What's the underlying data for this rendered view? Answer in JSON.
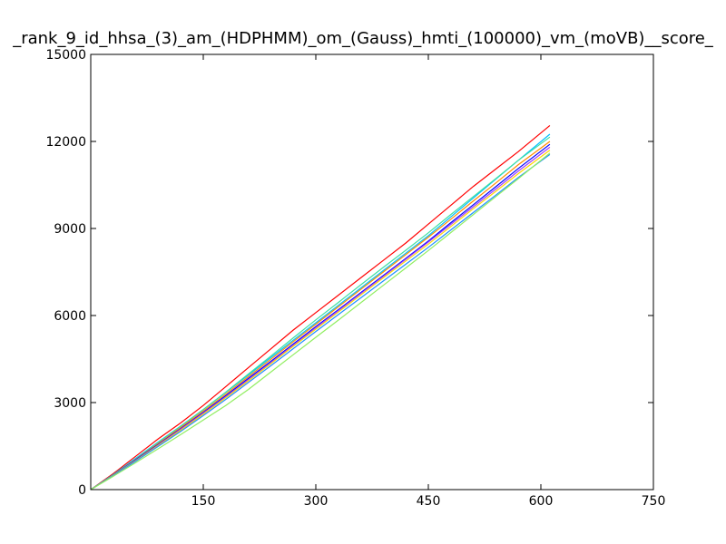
{
  "chart_data": {
    "type": "line",
    "title": "_rank_9_id_hhsa_(3)_am_(HDPHMM)_om_(Gauss)_hmti_(100000)_vm_(moVB)__score_",
    "xlabel": "",
    "ylabel": "",
    "xlim": [
      0,
      750
    ],
    "ylim": [
      0,
      15000
    ],
    "x_ticks": [
      "150",
      "300",
      "450",
      "600",
      "750"
    ],
    "y_ticks": [
      "0",
      "3000",
      "6000",
      "9000",
      "12000",
      "15000"
    ],
    "grid": false,
    "series": [
      {
        "color": "#ff0000",
        "x": [
          0,
          30,
          60,
          90,
          120,
          150,
          180,
          210,
          240,
          270,
          300,
          330,
          360,
          390,
          420,
          450,
          480,
          510,
          540,
          570,
          612
        ],
        "values": [
          0,
          550,
          1150,
          1750,
          2300,
          2900,
          3550,
          4200,
          4850,
          5500,
          6100,
          6700,
          7300,
          7900,
          8500,
          9150,
          9800,
          10450,
          11050,
          11650,
          12550
        ]
      },
      {
        "color": "#00bfff",
        "x": [
          0,
          30,
          60,
          90,
          120,
          150,
          180,
          210,
          240,
          270,
          300,
          330,
          360,
          390,
          420,
          450,
          480,
          510,
          540,
          570,
          612
        ],
        "values": [
          0,
          520,
          1080,
          1640,
          2190,
          2760,
          3350,
          3950,
          4550,
          5150,
          5750,
          6350,
          6950,
          7550,
          8150,
          8750,
          9400,
          10050,
          10700,
          11350,
          12250
        ]
      },
      {
        "color": "#40e0a0",
        "x": [
          0,
          30,
          60,
          90,
          120,
          150,
          180,
          210,
          240,
          270,
          300,
          330,
          360,
          390,
          420,
          450,
          480,
          510,
          540,
          570,
          612
        ],
        "values": [
          0,
          510,
          1060,
          1620,
          2180,
          2760,
          3360,
          3980,
          4600,
          5230,
          5850,
          6450,
          7060,
          7660,
          8250,
          8850,
          9480,
          10100,
          10720,
          11350,
          12150
        ]
      },
      {
        "color": "#ff8c00",
        "x": [
          0,
          30,
          60,
          90,
          120,
          150,
          180,
          210,
          240,
          270,
          300,
          330,
          360,
          390,
          420,
          450,
          480,
          510,
          540,
          570,
          612
        ],
        "values": [
          0,
          500,
          1040,
          1590,
          2140,
          2710,
          3290,
          3890,
          4490,
          5100,
          5700,
          6300,
          6900,
          7500,
          8100,
          8700,
          9320,
          9950,
          10570,
          11200,
          12000
        ]
      },
      {
        "color": "#0000ff",
        "x": [
          0,
          30,
          60,
          90,
          120,
          150,
          180,
          210,
          240,
          270,
          300,
          330,
          360,
          390,
          420,
          450,
          480,
          510,
          540,
          570,
          612
        ],
        "values": [
          0,
          500,
          1030,
          1560,
          2100,
          2660,
          3240,
          3830,
          4420,
          5020,
          5620,
          6200,
          6790,
          7380,
          7970,
          8570,
          9200,
          9820,
          10440,
          11070,
          11900
        ]
      },
      {
        "color": "#a040ff",
        "x": [
          0,
          30,
          60,
          90,
          120,
          150,
          180,
          210,
          240,
          270,
          300,
          330,
          360,
          390,
          420,
          450,
          480,
          510,
          540,
          570,
          612
        ],
        "values": [
          0,
          490,
          1010,
          1540,
          2080,
          2630,
          3200,
          3790,
          4380,
          4980,
          5580,
          6170,
          6760,
          7350,
          7940,
          8530,
          9140,
          9750,
          10360,
          10980,
          11800
        ]
      },
      {
        "color": "#ffd700",
        "x": [
          0,
          30,
          60,
          90,
          120,
          150,
          180,
          210,
          240,
          270,
          300,
          330,
          360,
          390,
          420,
          450,
          480,
          510,
          540,
          570,
          612
        ],
        "values": [
          0,
          490,
          1000,
          1520,
          2050,
          2600,
          3170,
          3750,
          4340,
          4940,
          5530,
          6120,
          6710,
          7300,
          7880,
          8460,
          9070,
          9680,
          10280,
          10890,
          11700
        ]
      },
      {
        "color": "#1e90ff",
        "x": [
          0,
          30,
          60,
          90,
          120,
          150,
          180,
          210,
          240,
          270,
          300,
          330,
          360,
          390,
          420,
          450,
          480,
          510,
          540,
          570,
          612
        ],
        "values": [
          0,
          480,
          980,
          1490,
          2010,
          2550,
          3110,
          3690,
          4270,
          4860,
          5450,
          6030,
          6610,
          7190,
          7770,
          8350,
          8950,
          9550,
          10150,
          10760,
          11550
        ]
      },
      {
        "color": "#90ee60",
        "x": [
          0,
          30,
          60,
          90,
          120,
          150,
          180,
          210,
          240,
          270,
          300,
          330,
          360,
          390,
          420,
          450,
          480,
          510,
          540,
          570,
          612
        ],
        "values": [
          0,
          460,
          930,
          1410,
          1900,
          2400,
          2900,
          3450,
          4050,
          4650,
          5250,
          5840,
          6440,
          7040,
          7640,
          8240,
          8860,
          9480,
          10100,
          10720,
          11600
        ]
      }
    ]
  }
}
